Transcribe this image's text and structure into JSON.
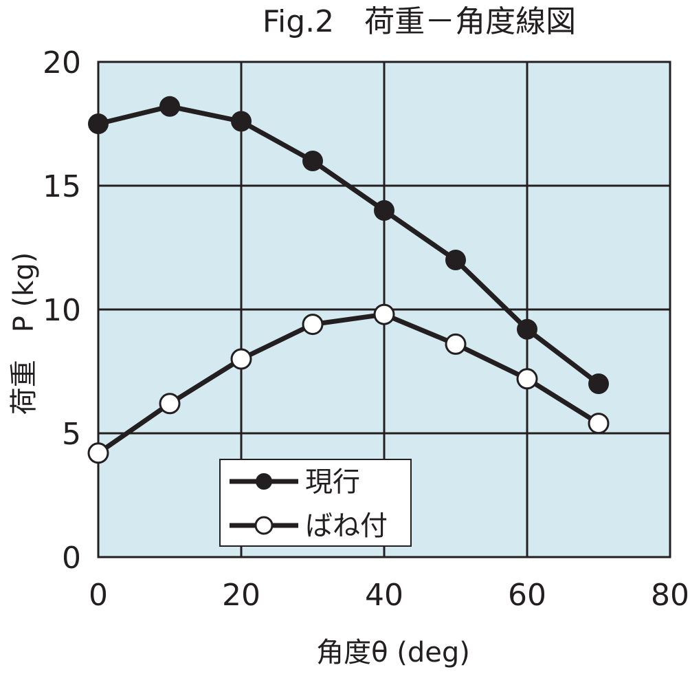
{
  "chart_data": {
    "type": "line",
    "title": "Fig.2　荷重－角度線図",
    "xlabel": "角度θ  (deg)",
    "ylabel": "荷重　P  (kg)",
    "xlim": [
      0,
      80
    ],
    "ylim": [
      0,
      20
    ],
    "xticks": [
      "0",
      "20",
      "40",
      "60",
      "80"
    ],
    "yticks": [
      "0",
      "5",
      "10",
      "15",
      "20"
    ],
    "grid": true,
    "legend_position": "bottom-center",
    "background_color": "#d4eaf0",
    "line_color": "#231f20",
    "series": [
      {
        "name": "現行",
        "marker": "filled-circle",
        "x": [
          0,
          10,
          20,
          30,
          40,
          50,
          60,
          70
        ],
        "y": [
          17.5,
          18.2,
          17.6,
          16.0,
          14.0,
          12.0,
          9.2,
          7.0
        ]
      },
      {
        "name": "ばね付",
        "marker": "open-circle",
        "x": [
          0,
          10,
          20,
          30,
          40,
          50,
          60,
          70
        ],
        "y": [
          4.2,
          6.2,
          8.0,
          9.4,
          9.8,
          8.6,
          7.2,
          5.4
        ]
      }
    ]
  }
}
